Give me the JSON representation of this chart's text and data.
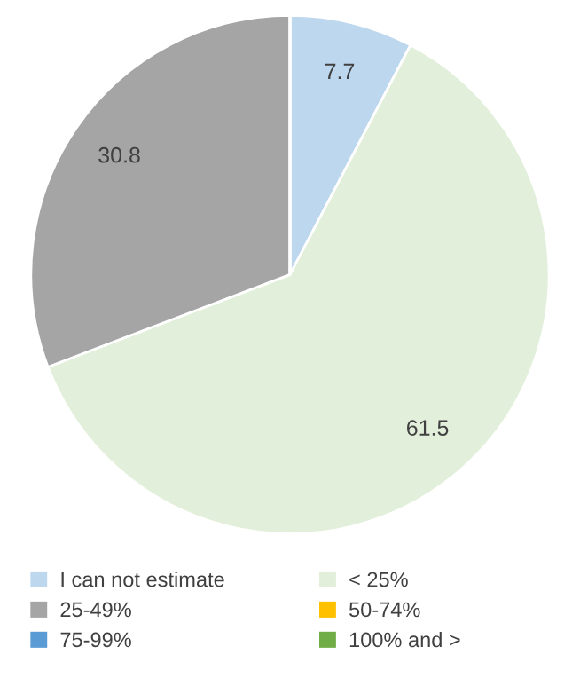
{
  "chart_data": {
    "type": "pie",
    "categories": [
      "I can not estimate",
      "< 25%",
      "25-49%",
      "50-74%",
      "75-99%",
      "100% and >"
    ],
    "values": [
      7.7,
      61.5,
      30.8,
      0,
      0,
      0
    ],
    "colors": [
      "#bdd7ee",
      "#e2efda",
      "#a5a5a5",
      "#ffc000",
      "#5b9bd5",
      "#70ad47"
    ],
    "value_labels": [
      "7.7",
      "61.5",
      "30.8",
      null,
      null,
      null
    ],
    "legend": "bottom"
  }
}
